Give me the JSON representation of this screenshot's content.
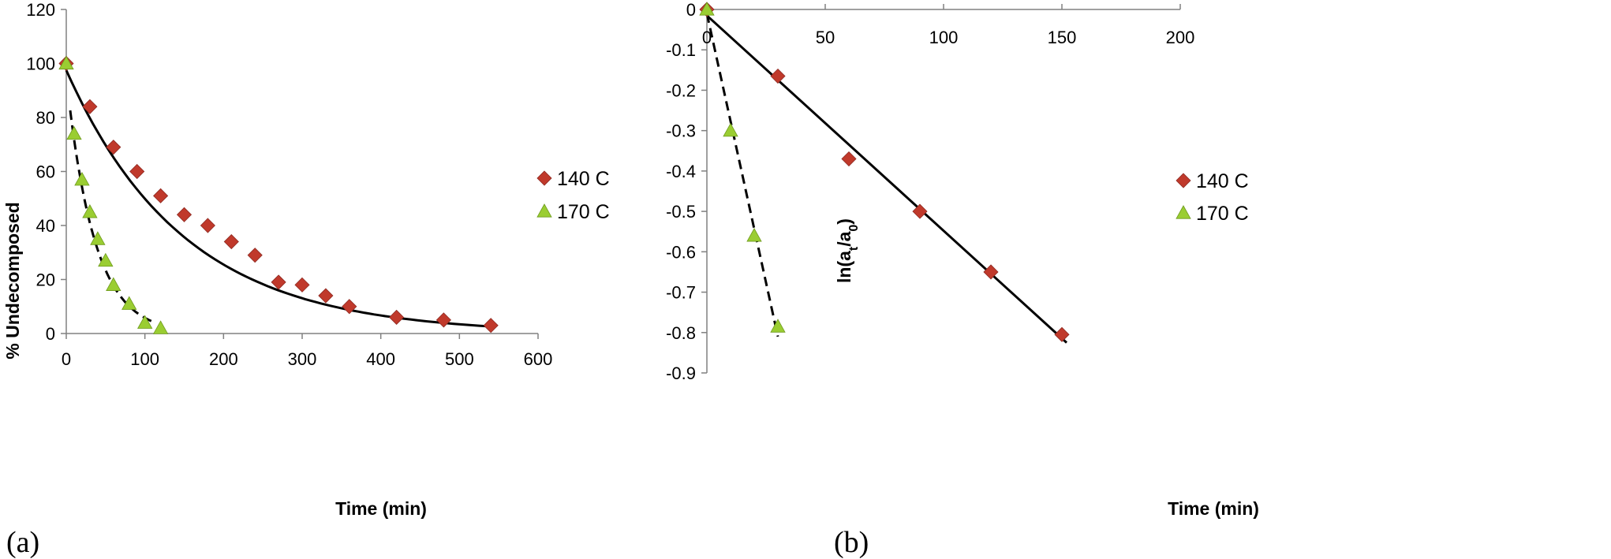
{
  "colors": {
    "series_140C": "#c0392b",
    "series_140C_stroke": "#8e2a22",
    "series_170C": "#9acd32",
    "series_170C_stroke": "#6e9a1d",
    "fit_line": "#000000",
    "axis": "#808080"
  },
  "chart_data": [
    {
      "panel_label": "(a)",
      "type": "scatter",
      "xlabel": "Time (min)",
      "ylabel": "% Undecomposed",
      "xlim": [
        0,
        600
      ],
      "ylim": [
        0,
        120
      ],
      "xticks": [
        0,
        100,
        200,
        300,
        400,
        500,
        600
      ],
      "yticks": [
        0,
        20,
        40,
        60,
        80,
        100,
        120
      ],
      "x_tick_labels": [
        "0",
        "100",
        "200",
        "300",
        "400",
        "500",
        "600"
      ],
      "y_tick_labels": [
        "0",
        "20",
        "40",
        "60",
        "80",
        "100",
        "120"
      ],
      "grid": false,
      "legend_position": "right",
      "series": [
        {
          "name": "140 C",
          "marker": "diamond",
          "x": [
            0,
            30,
            60,
            90,
            120,
            150,
            180,
            210,
            240,
            270,
            300,
            330,
            360,
            420,
            480,
            540
          ],
          "y": [
            100,
            84,
            69,
            60,
            51,
            44,
            40,
            34,
            29,
            19,
            18,
            14,
            10,
            6,
            5,
            3
          ],
          "fit": {
            "style": "solid",
            "model": "exponential",
            "a": 97.5,
            "k": 0.0067,
            "x_range": [
              0,
              540
            ]
          }
        },
        {
          "name": "170 C",
          "marker": "triangle",
          "x": [
            0,
            10,
            20,
            30,
            40,
            50,
            60,
            80,
            100,
            120
          ],
          "y": [
            100,
            74,
            57,
            45,
            35,
            27,
            18,
            11,
            4,
            2
          ],
          "fit": {
            "style": "dashed",
            "model": "exponential",
            "a": 95,
            "k": 0.028,
            "x_range": [
              5,
              110
            ]
          }
        }
      ]
    },
    {
      "panel_label": "(b)",
      "type": "scatter",
      "xlabel": "Time (min)",
      "ylabel_main": "ln(a",
      "ylabel_sub1": "t",
      "ylabel_mid": "/a",
      "ylabel_sub2": "0",
      "ylabel_end": ")",
      "xlim": [
        0,
        200
      ],
      "ylim": [
        -0.9,
        0
      ],
      "xticks": [
        0,
        50,
        100,
        150,
        200
      ],
      "yticks": [
        0,
        -0.1,
        -0.2,
        -0.3,
        -0.4,
        -0.5,
        -0.6,
        -0.7,
        -0.8,
        -0.9
      ],
      "x_tick_labels": [
        "0",
        "50",
        "100",
        "150",
        "200"
      ],
      "y_tick_labels": [
        "0",
        "-0.1",
        "-0.2",
        "-0.3",
        "-0.4",
        "-0.5",
        "-0.6",
        "-0.7",
        "-0.8",
        "-0.9"
      ],
      "x_axis_position": "top",
      "grid": false,
      "legend_position": "right",
      "series": [
        {
          "name": "140 C",
          "marker": "diamond",
          "x": [
            0,
            30,
            60,
            90,
            120,
            150
          ],
          "y": [
            0,
            -0.165,
            -0.37,
            -0.5,
            -0.65,
            -0.805
          ],
          "fit": {
            "style": "solid",
            "model": "linear",
            "x0": 0,
            "y0": -0.015,
            "x1": 152,
            "y1": -0.825
          }
        },
        {
          "name": "170 C",
          "marker": "triangle",
          "x": [
            0,
            10,
            20,
            30
          ],
          "y": [
            0,
            -0.3,
            -0.56,
            -0.785
          ],
          "fit": {
            "style": "dashed",
            "model": "linear",
            "x0": 0,
            "y0": -0.01,
            "x1": 30,
            "y1": -0.81
          }
        }
      ]
    }
  ]
}
